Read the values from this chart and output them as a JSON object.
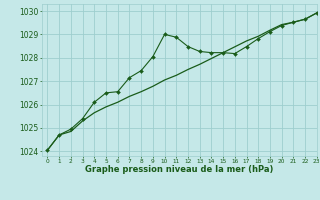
{
  "title": "Graphe pression niveau de la mer (hPa)",
  "bg_color": "#c5e8e8",
  "grid_color": "#9ecece",
  "line_color": "#1a5c1a",
  "xlim": [
    -0.5,
    23
  ],
  "ylim": [
    1023.8,
    1030.3
  ],
  "yticks": [
    1024,
    1025,
    1026,
    1027,
    1028,
    1029,
    1030
  ],
  "xticks": [
    0,
    1,
    2,
    3,
    4,
    5,
    6,
    7,
    8,
    9,
    10,
    11,
    12,
    13,
    14,
    15,
    16,
    17,
    18,
    19,
    20,
    21,
    22,
    23
  ],
  "series1_x": [
    0,
    1,
    2,
    3,
    4,
    5,
    6,
    7,
    8,
    9,
    10,
    11,
    12,
    13,
    14,
    15,
    16,
    17,
    18,
    19,
    20,
    21,
    22,
    23
  ],
  "series1_y": [
    1024.05,
    1024.7,
    1024.85,
    1025.3,
    1025.65,
    1025.9,
    1026.1,
    1026.35,
    1026.55,
    1026.78,
    1027.05,
    1027.25,
    1027.5,
    1027.72,
    1027.97,
    1028.22,
    1028.47,
    1028.72,
    1028.92,
    1029.18,
    1029.42,
    1029.52,
    1029.65,
    1029.92
  ],
  "series2_x": [
    0,
    1,
    2,
    3,
    4,
    5,
    6,
    7,
    8,
    9,
    10,
    11,
    12,
    13,
    14,
    15,
    16,
    17,
    18,
    19,
    20,
    21,
    22,
    23
  ],
  "series2_y": [
    1024.05,
    1024.7,
    1024.95,
    1025.4,
    1026.1,
    1026.5,
    1026.55,
    1027.15,
    1027.45,
    1028.05,
    1029.0,
    1028.88,
    1028.48,
    1028.27,
    1028.22,
    1028.22,
    1028.18,
    1028.48,
    1028.82,
    1029.12,
    1029.38,
    1029.52,
    1029.65,
    1029.92
  ],
  "xlabel_fontsize": 6.0,
  "ytick_fontsize": 5.5,
  "xtick_fontsize": 4.2
}
